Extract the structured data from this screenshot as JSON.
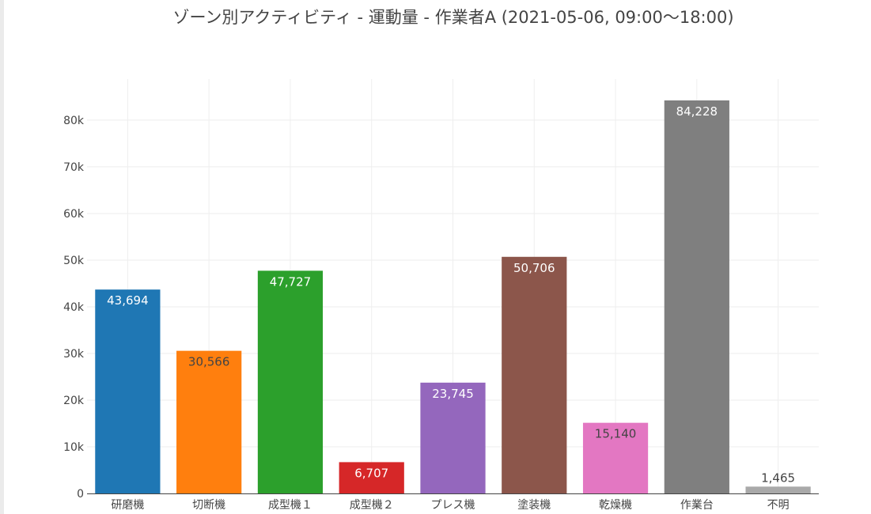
{
  "chart_data": {
    "type": "bar",
    "title": "ゾーン別アクティビティ - 運動量 - 作業者A (2021-05-06, 09:00〜18:00)",
    "xlabel": "",
    "ylabel": "",
    "categories": [
      "研磨機",
      "切断機",
      "成型機１",
      "成型機２",
      "プレス機",
      "塗装機",
      "乾燥機",
      "作業台",
      "不明"
    ],
    "values": [
      43694,
      30566,
      47727,
      6707,
      23745,
      50706,
      15140,
      84228,
      1465
    ],
    "data_labels": [
      "43,694",
      "30,566",
      "47,727",
      "6,707",
      "23,745",
      "50,706",
      "15,140",
      "84,228",
      "1,465"
    ],
    "colors": [
      "#1f77b4",
      "#ff7f0e",
      "#2ca02c",
      "#d62728",
      "#9467bd",
      "#8c564b",
      "#e377c2",
      "#7f7f7f",
      "#a9a9a9"
    ],
    "label_colors": [
      "#ffffff",
      "#444444",
      "#ffffff",
      "#ffffff",
      "#ffffff",
      "#ffffff",
      "#444444",
      "#ffffff",
      "#444444"
    ],
    "label_outside": [
      false,
      false,
      false,
      false,
      false,
      false,
      false,
      false,
      true
    ],
    "yticks": [
      0,
      10000,
      20000,
      30000,
      40000,
      50000,
      60000,
      70000,
      80000
    ],
    "ytick_labels": [
      "0",
      "10k",
      "20k",
      "30k",
      "40k",
      "50k",
      "60k",
      "70k",
      "80k"
    ],
    "ylim": [
      0,
      88800
    ],
    "grid": true,
    "legend": "none"
  }
}
